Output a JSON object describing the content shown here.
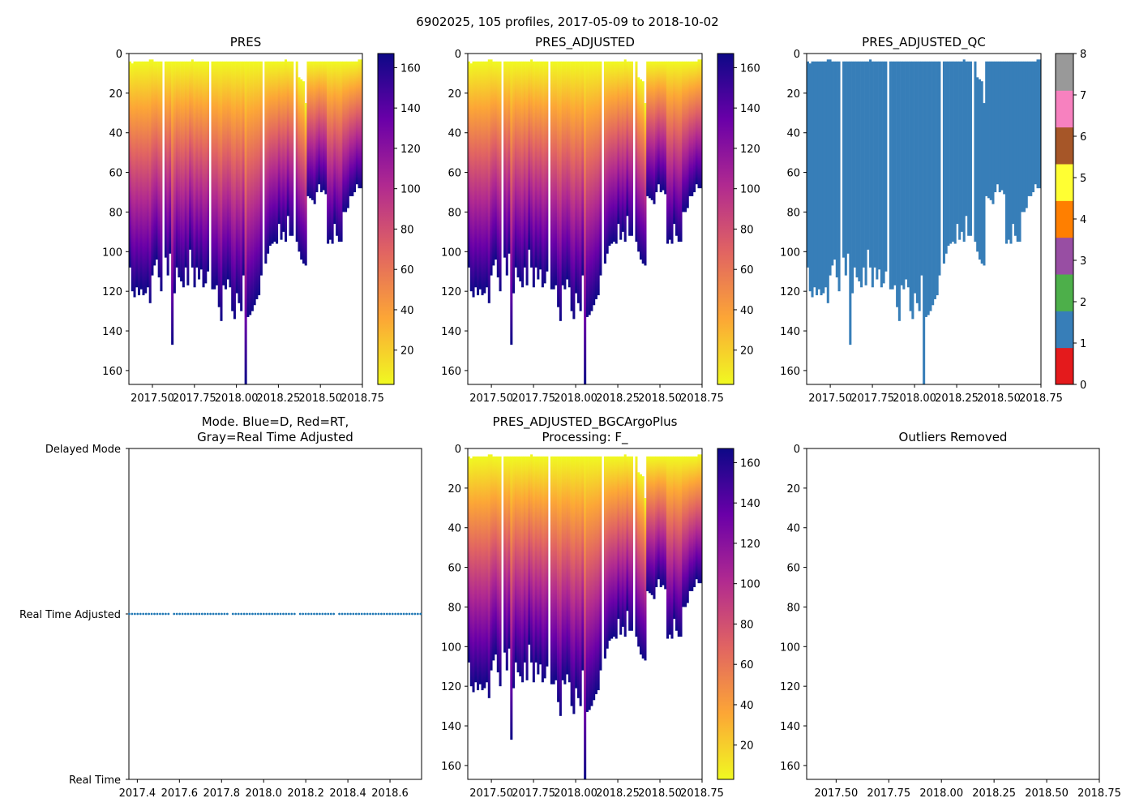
{
  "figure": {
    "suptitle": "6902025, 105 profiles, 2017-05-09 to 2018-10-02"
  },
  "colors": {
    "plasma": [
      "#0d0887",
      "#6a00a8",
      "#b12a90",
      "#e16462",
      "#fca636",
      "#f0f921"
    ],
    "qc": [
      "#e41a1c",
      "#377eb8",
      "#4daf4a",
      "#984ea3",
      "#ff7f00",
      "#ffff33",
      "#a65628",
      "#f781bf",
      "#999999"
    ],
    "profile_qc_color": "#377eb8",
    "mode_point_color": "#1f77b4"
  },
  "chart_data": [
    {
      "type": "heatmap",
      "title": "PRES",
      "xticks": [
        "2017.50",
        "2017.75",
        "2018.00",
        "2018.25",
        "2018.50",
        "2018.75"
      ],
      "yticks": [
        "0",
        "20",
        "40",
        "60",
        "80",
        "100",
        "120",
        "140",
        "160"
      ],
      "xlim": [
        2017.36,
        2018.75
      ],
      "ylim": [
        167,
        0
      ],
      "colorbar": {
        "ticks": [
          "20",
          "40",
          "60",
          "80",
          "100",
          "120",
          "140",
          "160"
        ],
        "range": [
          3,
          167
        ],
        "cmap": "plasma"
      }
    },
    {
      "type": "heatmap",
      "title": "PRES_ADJUSTED",
      "xticks": [
        "2017.50",
        "2017.75",
        "2018.00",
        "2018.25",
        "2018.50",
        "2018.75"
      ],
      "yticks": [
        "0",
        "20",
        "40",
        "60",
        "80",
        "100",
        "120",
        "140",
        "160"
      ],
      "xlim": [
        2017.36,
        2018.75
      ],
      "ylim": [
        167,
        0
      ],
      "colorbar": {
        "ticks": [
          "20",
          "40",
          "60",
          "80",
          "100",
          "120",
          "140",
          "160"
        ],
        "range": [
          3,
          167
        ],
        "cmap": "plasma"
      }
    },
    {
      "type": "heatmap",
      "title": "PRES_ADJUSTED_QC",
      "xticks": [
        "2017.50",
        "2017.75",
        "2018.00",
        "2018.25",
        "2018.50",
        "2018.75"
      ],
      "yticks": [
        "0",
        "20",
        "40",
        "60",
        "80",
        "100",
        "120",
        "140",
        "160"
      ],
      "xlim": [
        2017.36,
        2018.75
      ],
      "ylim": [
        167,
        0
      ],
      "colorbar": {
        "ticks": [
          "0",
          "1",
          "2",
          "3",
          "4",
          "5",
          "6",
          "7",
          "8"
        ],
        "range": [
          0,
          8
        ],
        "cmap": "qc"
      },
      "qc_value": 1
    },
    {
      "type": "scatter",
      "title_lines": [
        "Mode. Blue=D, Red=RT,",
        "Gray=Real Time Adjusted"
      ],
      "xticks": [
        "2017.4",
        "2017.6",
        "2017.8",
        "2018.0",
        "2018.2",
        "2018.4",
        "2018.6"
      ],
      "yticks": [
        "Delayed Mode",
        "Real Time Adjusted",
        "Real Time"
      ],
      "xlim": [
        2017.36,
        2018.75
      ],
      "mode_value": "Real Time Adjusted"
    },
    {
      "type": "heatmap",
      "title_lines": [
        "PRES_ADJUSTED_BGCArgoPlus",
        "Processing: F_"
      ],
      "xticks": [
        "2017.50",
        "2017.75",
        "2018.00",
        "2018.25",
        "2018.50",
        "2018.75"
      ],
      "yticks": [
        "0",
        "20",
        "40",
        "60",
        "80",
        "100",
        "120",
        "140",
        "160"
      ],
      "xlim": [
        2017.36,
        2018.75
      ],
      "ylim": [
        167,
        0
      ],
      "colorbar": {
        "ticks": [
          "20",
          "40",
          "60",
          "80",
          "100",
          "120",
          "140",
          "160"
        ],
        "range": [
          3,
          167
        ],
        "cmap": "plasma"
      }
    },
    {
      "type": "heatmap",
      "title": "Outliers Removed",
      "xticks": [
        "2017.50",
        "2017.75",
        "2018.00",
        "2018.25",
        "2018.50",
        "2018.75"
      ],
      "yticks": [
        "0",
        "20",
        "40",
        "60",
        "80",
        "100",
        "120",
        "140",
        "160"
      ],
      "xlim": [
        2017.36,
        2018.75
      ],
      "ylim": [
        167,
        0
      ],
      "empty": true
    }
  ],
  "profiles": {
    "time_start": 2017.355,
    "time_end": 2018.752,
    "tops": [
      4,
      5,
      4,
      4,
      4,
      4,
      4,
      4,
      4,
      3,
      3,
      4,
      4,
      4,
      4,
      4,
      4,
      4,
      4,
      4,
      4,
      4,
      4,
      4,
      4,
      4,
      4,
      4,
      3,
      4,
      4,
      4,
      4,
      4,
      4,
      4,
      4,
      4,
      4,
      4,
      4,
      4,
      4,
      4,
      4,
      4,
      4,
      4,
      4,
      4,
      4,
      4,
      4,
      4,
      4,
      4,
      4,
      4,
      4,
      4,
      4,
      4,
      4,
      4,
      4,
      4,
      4,
      4,
      4,
      4,
      3,
      4,
      4,
      4,
      4,
      4,
      12,
      13,
      14,
      25,
      4,
      4,
      4,
      4,
      4,
      4,
      4,
      4,
      4,
      4,
      4,
      4,
      4,
      4,
      4,
      4,
      4,
      4,
      4,
      4,
      4,
      4,
      4,
      3,
      3
    ],
    "bottoms": [
      108,
      120,
      123,
      118,
      122,
      119,
      122,
      121,
      118,
      126,
      112,
      107,
      104,
      113,
      120,
      110,
      103,
      112,
      101,
      147,
      121,
      108,
      113,
      115,
      118,
      108,
      117,
      99,
      108,
      118,
      108,
      114,
      109,
      118,
      116,
      110,
      118,
      119,
      119,
      117,
      128,
      135,
      117,
      119,
      114,
      118,
      130,
      134,
      121,
      126,
      130,
      112,
      167,
      133,
      132,
      130,
      127,
      124,
      122,
      112,
      96,
      106,
      101,
      97,
      96,
      95,
      96,
      86,
      94,
      90,
      95,
      82,
      92,
      92,
      90,
      95,
      100,
      104,
      106,
      107,
      72,
      73,
      74,
      76,
      70,
      66,
      70,
      69,
      71,
      96,
      94,
      96,
      86,
      92,
      95,
      95,
      80,
      80,
      78,
      72,
      72,
      70,
      66,
      68,
      68
    ],
    "gaps": [
      {
        "index": 15,
        "note": "gap"
      },
      {
        "index": 36,
        "note": "gap"
      },
      {
        "index": 60,
        "note": "gap"
      },
      {
        "index": 74,
        "note": "gap"
      }
    ]
  }
}
